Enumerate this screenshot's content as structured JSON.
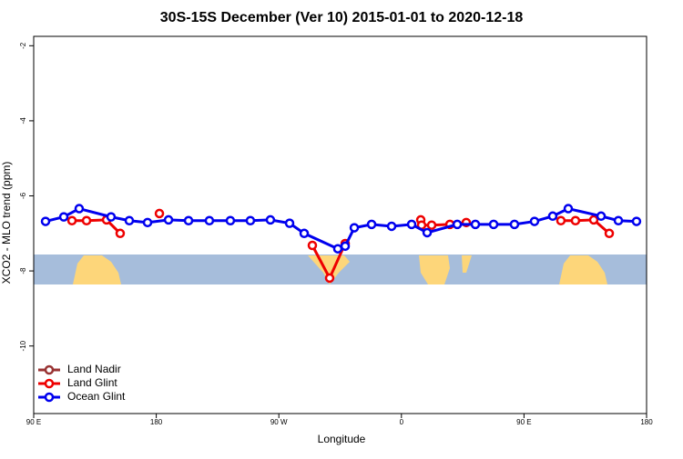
{
  "chart_data": {
    "type": "line",
    "title": "30S-15S December (Ver 10)   2015-01-01 to 2020-12-18",
    "x_label": "Longitude",
    "y_label": "XCO2 - MLO trend (ppm)",
    "xlim": [
      90,
      540
    ],
    "ylim": [
      -11.8,
      -1.75
    ],
    "xticks": [
      {
        "value": 90,
        "label": "90 E"
      },
      {
        "value": 180,
        "label": "180"
      },
      {
        "value": 270,
        "label": "90 W"
      },
      {
        "value": 360,
        "label": "0"
      },
      {
        "value": 450,
        "label": "90 E"
      },
      {
        "value": 540,
        "label": "180"
      }
    ],
    "yticks": [
      -2,
      -4,
      -6,
      -8,
      -10
    ],
    "legend": "bottom-left",
    "series": [
      {
        "name": "Land Nadir",
        "color": "#993333",
        "x": [],
        "values": []
      },
      {
        "name": "Land Glint",
        "color": "#ee0000",
        "x": [
          118.1,
          128.8,
          143.5,
          153.5,
          null,
          182.3,
          null,
          294.6,
          307.3,
          318.7,
          null,
          374.2,
          374.8,
          382.2,
          395.6,
          407.6,
          null,
          477.1,
          487.8,
          501.2,
          512.6
        ],
        "values": [
          -6.66,
          -6.66,
          -6.64,
          -7.0,
          null,
          -6.47,
          null,
          -7.32,
          -8.19,
          -7.27,
          null,
          -6.64,
          -6.78,
          -6.78,
          -6.76,
          -6.71,
          null,
          -6.66,
          -6.66,
          -6.64,
          -7.0
        ]
      },
      {
        "name": "Ocean Glint",
        "color": "#0000ee",
        "x": [
          98.7,
          112.1,
          123.4,
          146.8,
          160.2,
          173.6,
          189,
          203.7,
          219,
          234.4,
          249.1,
          263.8,
          277.9,
          288.6,
          313.3,
          318.7,
          325.4,
          338.1,
          352.8,
          367.5,
          378.9,
          401,
          414.3,
          427.7,
          443,
          457.7,
          471.1,
          482.5,
          506.6,
          519.3,
          532.6
        ],
        "values": [
          -6.68,
          -6.56,
          -6.34,
          -6.56,
          -6.66,
          -6.71,
          -6.64,
          -6.66,
          -6.66,
          -6.66,
          -6.66,
          -6.64,
          -6.73,
          -7.0,
          -7.41,
          -7.34,
          -6.85,
          -6.76,
          -6.81,
          -6.76,
          -6.98,
          -6.76,
          -6.76,
          -6.76,
          -6.76,
          -6.68,
          -6.54,
          -6.34,
          -6.54,
          -6.66,
          -6.68
        ]
      }
    ]
  }
}
